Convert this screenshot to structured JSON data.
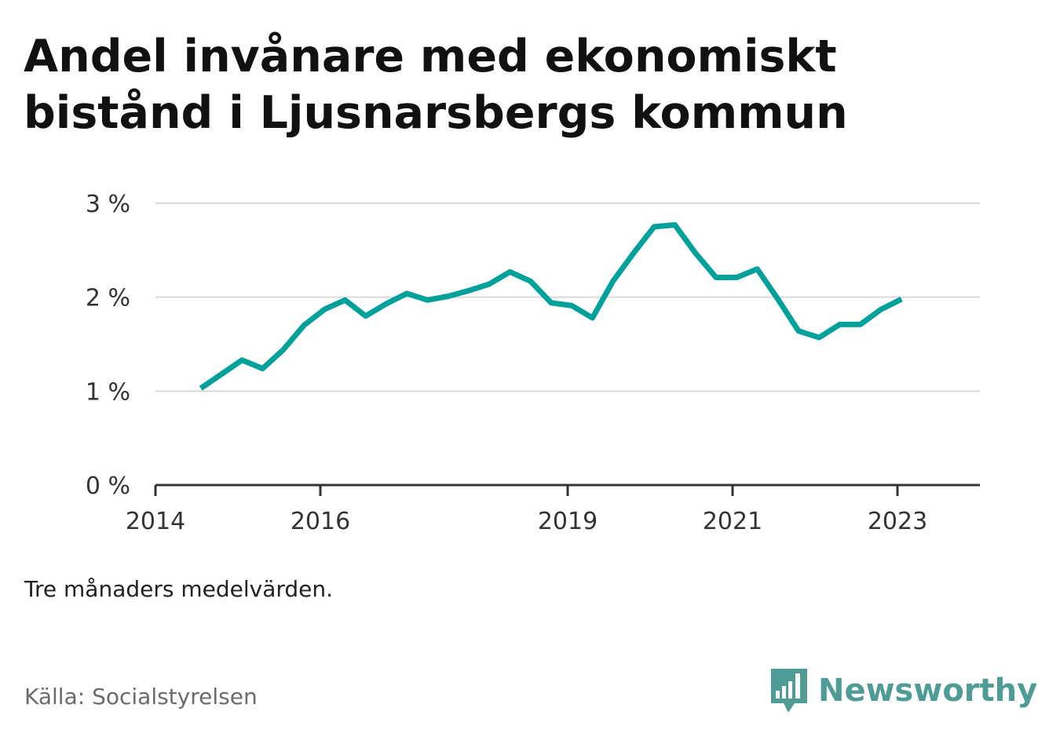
{
  "title": "Andel invånare med ekonomiskt bistånd i Ljusnarsbergs kommun",
  "note": "Tre månaders medelvärden.",
  "source": "Källa: Socialstyrelsen",
  "brand": {
    "name": "Newsworthy",
    "icon": "bar-chart-speech-bubble-icon"
  },
  "colors": {
    "line": "#00a19a",
    "grid": "#d9d9d9",
    "axis": "#333333",
    "brand": "#4e9c95"
  },
  "chart_data": {
    "type": "line",
    "title": "Andel invånare med ekonomiskt bistånd i Ljusnarsbergs kommun",
    "xlabel": "",
    "ylabel": "",
    "xlim": [
      2014.0,
      2024.0
    ],
    "ylim": [
      0,
      3
    ],
    "y_ticks": [
      {
        "value": 0,
        "label": "0 %"
      },
      {
        "value": 1,
        "label": "1 %"
      },
      {
        "value": 2,
        "label": "2 %"
      },
      {
        "value": 3,
        "label": "3 %"
      }
    ],
    "x_ticks": [
      {
        "value": 2014.0,
        "label": "2014"
      },
      {
        "value": 2016.0,
        "label": "2016"
      },
      {
        "value": 2019.0,
        "label": "2019"
      },
      {
        "value": 2021.0,
        "label": "2021"
      },
      {
        "value": 2023.0,
        "label": "2023"
      }
    ],
    "grid": true,
    "legend": "none",
    "series": [
      {
        "x": [
          2014.55,
          2014.8,
          2015.05,
          2015.3,
          2015.55,
          2015.8,
          2016.05,
          2016.3,
          2016.55,
          2016.8,
          2017.05,
          2017.3,
          2017.55,
          2017.8,
          2018.05,
          2018.3,
          2018.55,
          2018.8,
          2019.05,
          2019.3,
          2019.55,
          2019.8,
          2020.05,
          2020.3,
          2020.55,
          2020.8,
          2021.05,
          2021.3,
          2021.55,
          2021.8,
          2022.05,
          2022.3,
          2022.55,
          2022.8,
          2023.05
        ],
        "values": [
          1.03,
          1.18,
          1.33,
          1.24,
          1.44,
          1.7,
          1.87,
          1.97,
          1.8,
          1.93,
          2.04,
          1.97,
          2.01,
          2.07,
          2.14,
          2.27,
          2.17,
          1.94,
          1.91,
          1.78,
          2.17,
          2.47,
          2.75,
          2.77,
          2.47,
          2.21,
          2.21,
          2.3,
          1.98,
          1.64,
          1.57,
          1.71,
          1.71,
          1.87,
          1.98
        ]
      }
    ]
  }
}
